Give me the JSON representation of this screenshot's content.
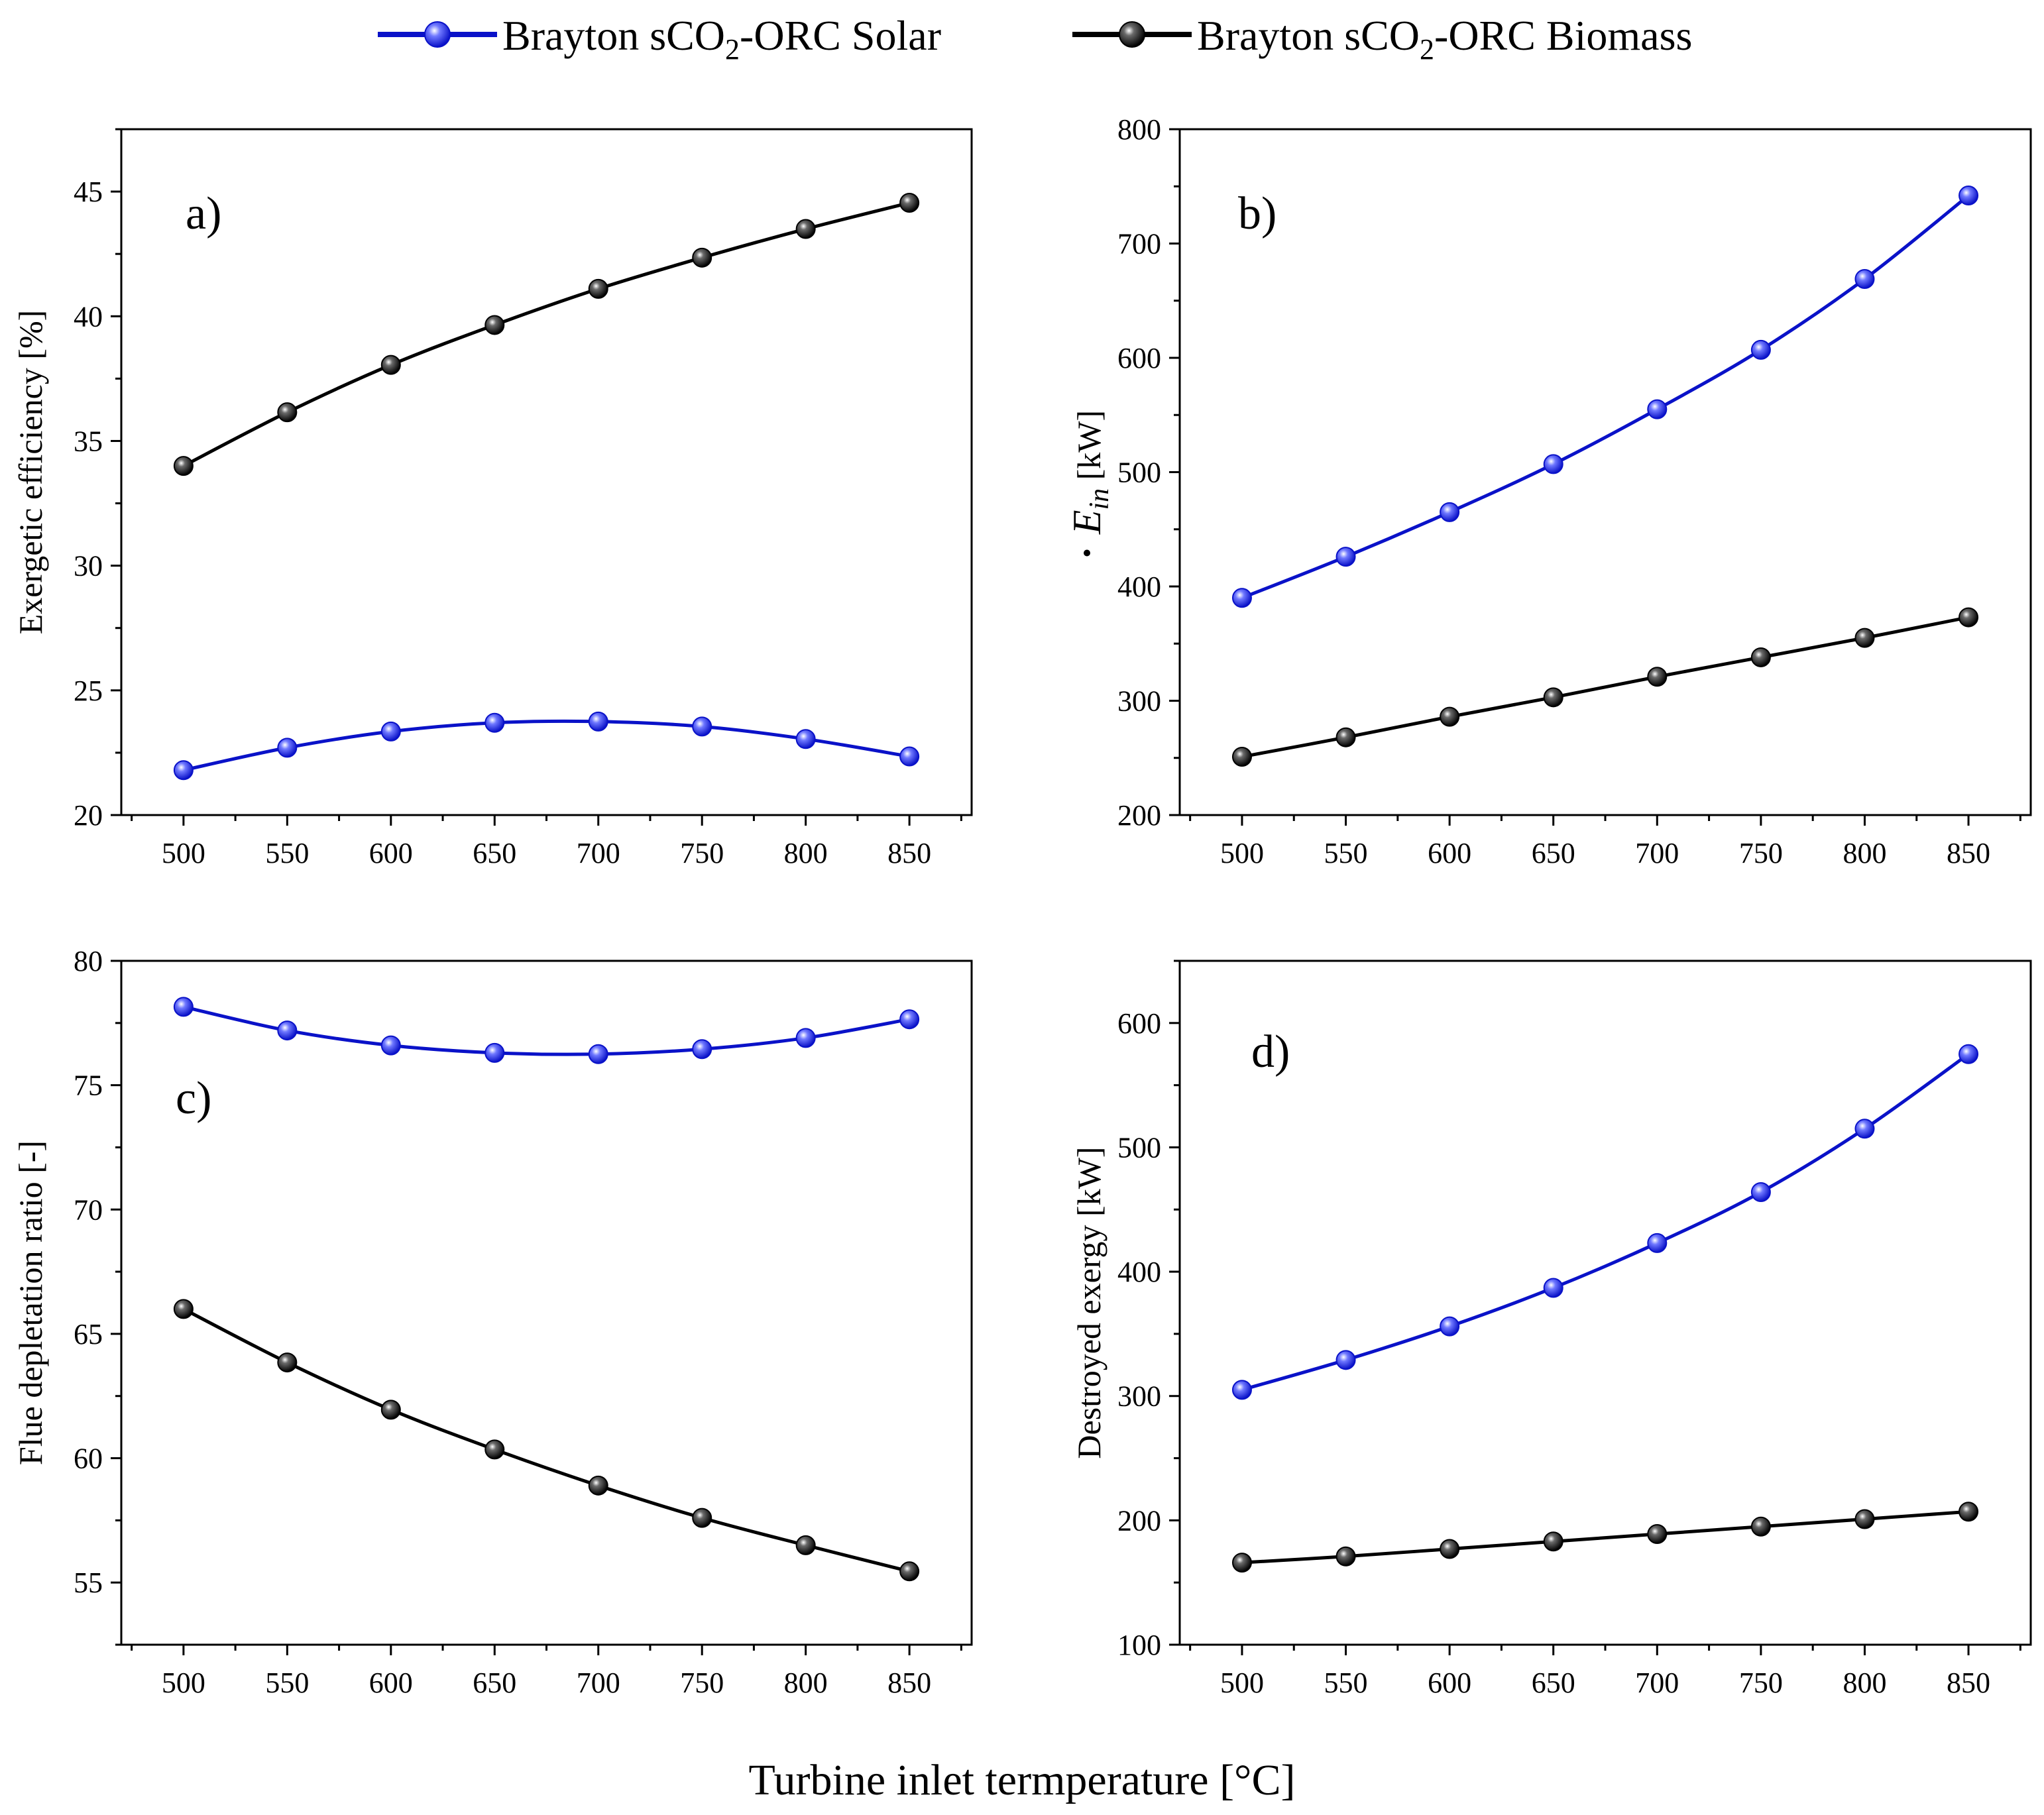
{
  "legend": {
    "solar": {
      "prefix": "Brayton sCO",
      "sub": "2",
      "suffix": "-ORC Solar"
    },
    "biomass": {
      "prefix": "Brayton sCO",
      "sub": "2",
      "suffix": "-ORC Biomass"
    }
  },
  "x_axis_label": "Turbine inlet termperature [°C]",
  "colors": {
    "solar": "#0a12c8",
    "biomass": "#000000"
  },
  "chart_data": [
    {
      "id": "a",
      "type": "line",
      "panel_label": "a)",
      "ylabel": "Exergetic efficiency [%]",
      "xlabel": "Turbine inlet termperature [°C]",
      "x": [
        500,
        550,
        600,
        650,
        700,
        750,
        800,
        850
      ],
      "xlim": [
        470,
        880
      ],
      "ylim": [
        20,
        47.5
      ],
      "yticks": [
        20,
        25,
        30,
        35,
        40,
        45
      ],
      "series": [
        {
          "name": "Brayton sCO2-ORC Solar",
          "values": [
            21.8,
            22.7,
            23.35,
            23.7,
            23.75,
            23.55,
            23.05,
            22.35
          ]
        },
        {
          "name": "Brayton sCO2-ORC Biomass",
          "values": [
            34.0,
            36.15,
            38.05,
            39.65,
            41.1,
            42.35,
            43.5,
            44.55
          ]
        }
      ]
    },
    {
      "id": "b",
      "type": "line",
      "panel_label": "b)",
      "ylabel_main": "E",
      "ylabel_sub": "in",
      "ylabel_unit": " [kW]",
      "xlabel": "Turbine inlet termperature [°C]",
      "x": [
        500,
        550,
        600,
        650,
        700,
        750,
        800,
        850
      ],
      "xlim": [
        470,
        880
      ],
      "ylim": [
        200,
        800
      ],
      "yticks": [
        200,
        300,
        400,
        500,
        600,
        700,
        800
      ],
      "series": [
        {
          "name": "Brayton sCO2-ORC Solar",
          "values": [
            390,
            426,
            465,
            507,
            555,
            607,
            669,
            742
          ]
        },
        {
          "name": "Brayton sCO2-ORC Biomass",
          "values": [
            251,
            268,
            286,
            303,
            321,
            338,
            355,
            373
          ]
        }
      ]
    },
    {
      "id": "c",
      "type": "line",
      "panel_label": "c)",
      "ylabel": "Flue depletation ratio [-]",
      "xlabel": "Turbine inlet termperature [°C]",
      "x": [
        500,
        550,
        600,
        650,
        700,
        750,
        800,
        850
      ],
      "xlim": [
        470,
        880
      ],
      "ylim": [
        52.5,
        80
      ],
      "yticks": [
        55,
        60,
        65,
        70,
        75,
        80
      ],
      "series": [
        {
          "name": "Brayton sCO2-ORC Solar",
          "values": [
            78.15,
            77.2,
            76.6,
            76.3,
            76.25,
            76.45,
            76.9,
            77.65
          ]
        },
        {
          "name": "Brayton sCO2-ORC Biomass",
          "values": [
            66.0,
            63.85,
            61.95,
            60.35,
            58.9,
            57.6,
            56.5,
            55.45
          ]
        }
      ]
    },
    {
      "id": "d",
      "type": "line",
      "panel_label": "d)",
      "ylabel": "Destroyed exergy [kW]",
      "xlabel": "Turbine inlet termperature [°C]",
      "x": [
        500,
        550,
        600,
        650,
        700,
        750,
        800,
        850
      ],
      "xlim": [
        470,
        880
      ],
      "ylim": [
        100,
        650
      ],
      "yticks": [
        100,
        200,
        300,
        400,
        500,
        600
      ],
      "series": [
        {
          "name": "Brayton sCO2-ORC Solar",
          "values": [
            305,
            329,
            356,
            387,
            423,
            464,
            515,
            575
          ]
        },
        {
          "name": "Brayton sCO2-ORC Biomass",
          "values": [
            166,
            171,
            177,
            183,
            189,
            195,
            201,
            207
          ]
        }
      ]
    }
  ]
}
